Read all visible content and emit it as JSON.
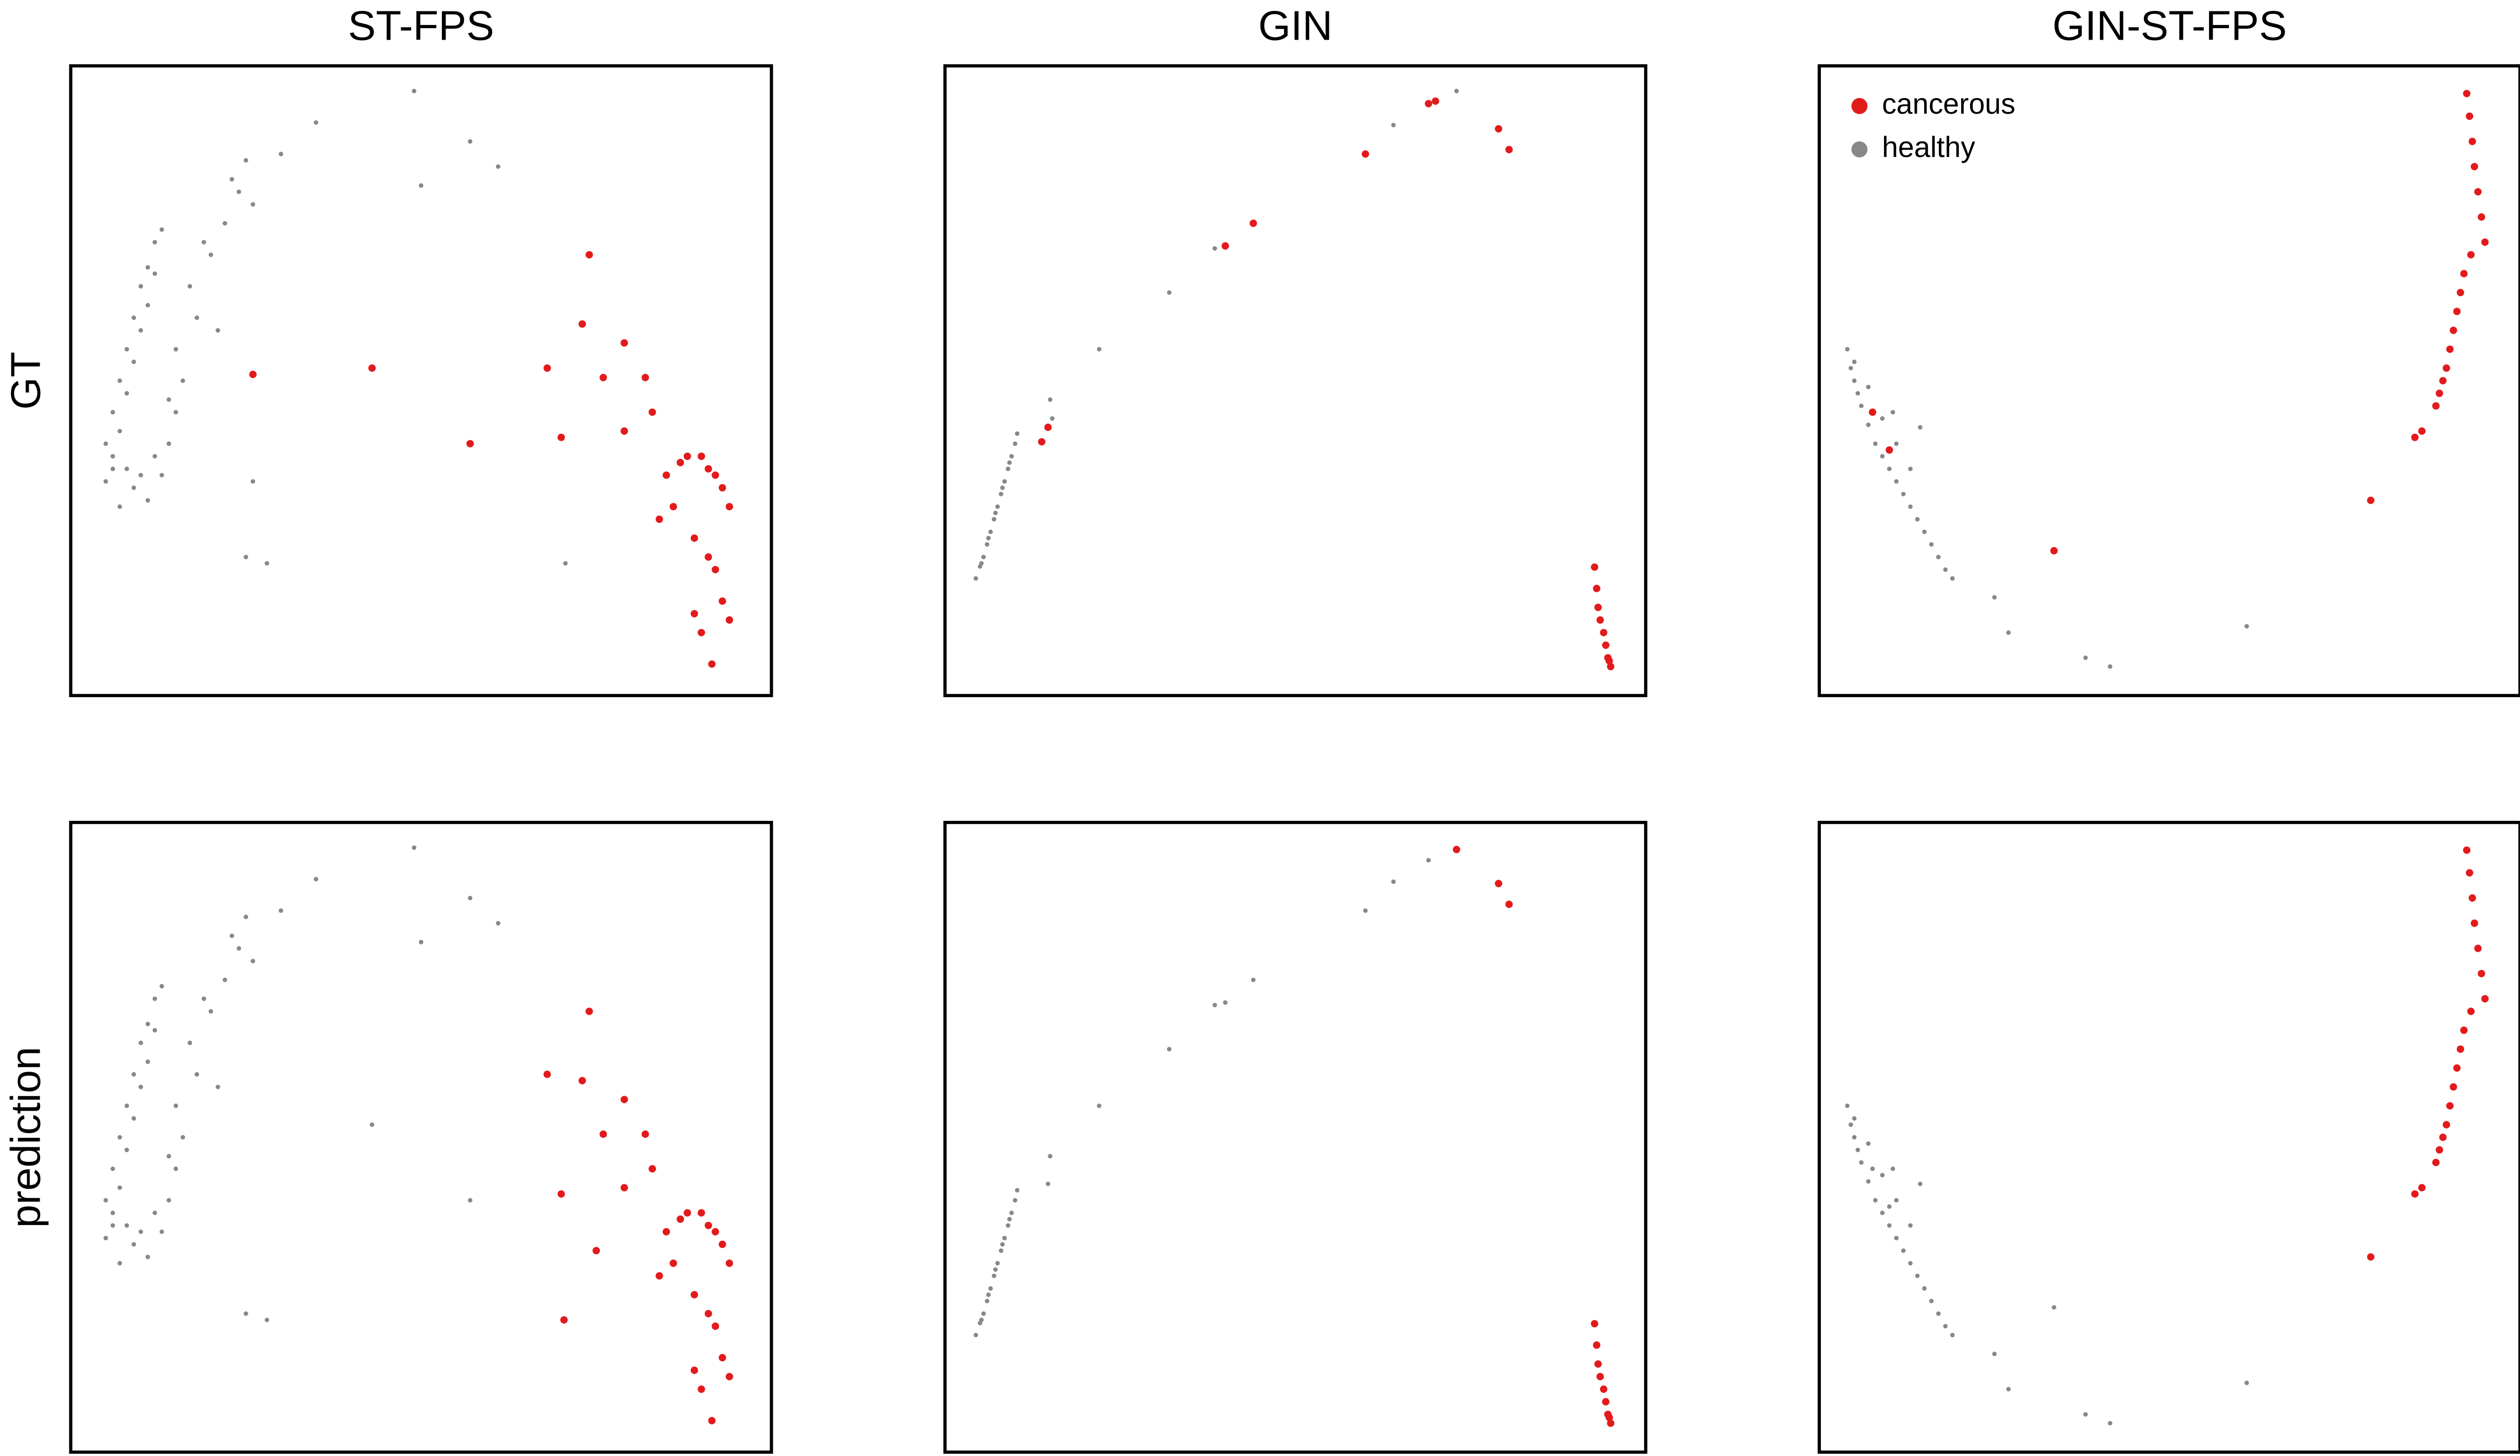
{
  "columns": [
    "ST-FPS",
    "GIN",
    "GIN-ST-FPS"
  ],
  "rows": [
    "GT",
    "prediction"
  ],
  "chart_data": [
    {
      "type": "scatter",
      "xlim": [
        0,
        100
      ],
      "ylim": [
        0,
        100
      ],
      "series": [
        {
          "name": "cancerous",
          "color": "#e31a1c",
          "x": [
            74,
            43,
            26,
            57,
            68,
            73,
            79,
            76,
            82,
            70,
            79,
            83,
            85,
            87,
            88,
            90,
            91,
            92,
            93,
            94,
            84,
            86,
            89,
            91,
            92,
            93,
            94,
            91.5,
            90,
            89
          ],
          "values": [
            70,
            52,
            51,
            40,
            52,
            59,
            56,
            50.5,
            50.5,
            41,
            42,
            45,
            35,
            37,
            38,
            38,
            36,
            35,
            33,
            30,
            28,
            30,
            25,
            22,
            20,
            15,
            12,
            5,
            10,
            13
          ]
        },
        {
          "name": "healthy",
          "color": "#888888",
          "x": [
            5,
            6,
            7,
            8,
            9,
            10,
            11,
            12,
            13,
            6,
            7,
            8,
            9,
            10,
            11,
            12,
            5,
            6,
            8,
            10,
            12,
            14,
            7,
            9,
            11,
            13,
            15,
            16,
            18,
            20,
            22,
            24,
            26,
            15,
            17,
            19,
            21,
            23,
            25,
            30,
            35,
            49,
            57,
            61,
            50,
            26,
            28,
            70.6,
            25,
            14
          ],
          "values": [
            40,
            45,
            50,
            55,
            60,
            65,
            68,
            72,
            74,
            36,
            42,
            48,
            53,
            58,
            62,
            67,
            34,
            38,
            36,
            35,
            38,
            40,
            30,
            33,
            31,
            35,
            45,
            50,
            60,
            70,
            75,
            80,
            78,
            55,
            65,
            72,
            58,
            82,
            85,
            86,
            91,
            96,
            88,
            84,
            81,
            34,
            21,
            21,
            22,
            47
          ]
        }
      ]
    },
    {
      "type": "scatter",
      "xlim": [
        0,
        100
      ],
      "ylim": [
        0,
        100
      ],
      "series": [
        {
          "name": "cancerous",
          "color": "#e31a1c",
          "x": [
            14.7,
            13.8,
            40,
            44,
            60,
            69,
            70,
            79,
            80.5,
            92.7,
            93,
            93.2,
            93.5,
            94,
            94.3,
            94.6,
            95,
            94.8
          ],
          "values": [
            42.6,
            40.3,
            71.4,
            75,
            86,
            94,
            94.4,
            90,
            86.7,
            20.4,
            17,
            14,
            12,
            10,
            8,
            6,
            4.6,
            5.5
          ]
        },
        {
          "name": "healthy",
          "color": "#888888",
          "x": [
            4.4,
            5,
            5.5,
            6,
            6.5,
            7,
            7.5,
            8,
            8.5,
            9,
            9.5,
            10,
            10.3,
            5.2,
            6.2,
            7.2,
            8.2,
            9.2,
            15,
            22,
            32,
            38.5,
            64,
            73,
            15.3
          ],
          "values": [
            18.6,
            20.5,
            22,
            24,
            26,
            28,
            30,
            32,
            34,
            36,
            38,
            40,
            41.6,
            21,
            25,
            29,
            33,
            37,
            47,
            55,
            64,
            71,
            90.6,
            96,
            44
          ]
        }
      ]
    },
    {
      "type": "scatter",
      "xlim": [
        0,
        100
      ],
      "ylim": [
        0,
        100
      ],
      "legend": "upper left",
      "series": [
        {
          "name": "cancerous",
          "color": "#e31a1c",
          "x": [
            92.4,
            92.8,
            93.2,
            93.5,
            94,
            94.5,
            95,
            93,
            92,
            91.5,
            91,
            90.5,
            90,
            89.5,
            89,
            88.5,
            88,
            86,
            85,
            78.7,
            33.5,
            7.6,
            10
          ],
          "values": [
            95.6,
            92,
            88,
            84,
            80,
            76,
            72,
            70,
            67,
            64,
            61,
            58,
            55,
            52,
            50,
            48,
            46,
            42,
            41,
            31,
            23,
            45,
            39
          ]
        },
        {
          "name": "healthy",
          "color": "#888888",
          "x": [
            4,
            4.5,
            5,
            5.5,
            6,
            7,
            8,
            9,
            10,
            11,
            12,
            13,
            14,
            15,
            16,
            17,
            18,
            19,
            5,
            7,
            9,
            11,
            13,
            14.4,
            25,
            27,
            38,
            41.5,
            61,
            10.5
          ],
          "values": [
            55,
            52,
            50,
            48,
            46,
            43,
            40,
            38,
            36,
            34,
            32,
            30,
            28,
            26,
            24,
            22,
            20,
            18.6,
            53,
            49,
            44,
            40,
            36,
            42.6,
            15.6,
            10,
            6,
            4.6,
            11,
            45
          ]
        }
      ]
    },
    {
      "type": "scatter",
      "xlim": [
        0,
        100
      ],
      "ylim": [
        0,
        100
      ],
      "series": [
        {
          "name": "cancerous",
          "color": "#e31a1c",
          "x": [
            74,
            68,
            73,
            79,
            76,
            82,
            70,
            79,
            83,
            85,
            87,
            88,
            90,
            91,
            92,
            93,
            94,
            84,
            86,
            89,
            91,
            92,
            93,
            94,
            91.5,
            90,
            89,
            75,
            70.4
          ],
          "values": [
            70,
            60,
            59,
            56,
            50.5,
            50.5,
            41,
            42,
            45,
            35,
            37,
            38,
            38,
            36,
            35,
            33,
            30,
            28,
            30,
            25,
            22,
            20,
            15,
            12,
            5,
            10,
            13,
            32,
            21
          ]
        },
        {
          "name": "healthy",
          "color": "#888888",
          "x": [
            5,
            6,
            7,
            8,
            9,
            10,
            11,
            12,
            13,
            6,
            7,
            8,
            9,
            10,
            11,
            12,
            5,
            6,
            8,
            10,
            12,
            14,
            7,
            9,
            11,
            13,
            15,
            16,
            18,
            20,
            22,
            24,
            26,
            15,
            17,
            19,
            21,
            23,
            25,
            30,
            35,
            49,
            57,
            61,
            50,
            43,
            57,
            28,
            25,
            14
          ],
          "values": [
            40,
            45,
            50,
            55,
            60,
            65,
            68,
            72,
            74,
            36,
            42,
            48,
            53,
            58,
            62,
            67,
            34,
            38,
            36,
            35,
            38,
            40,
            30,
            33,
            31,
            35,
            45,
            50,
            60,
            70,
            75,
            80,
            78,
            55,
            65,
            72,
            58,
            82,
            85,
            86,
            91,
            96,
            88,
            84,
            81,
            52,
            40,
            21,
            22,
            47
          ]
        }
      ]
    },
    {
      "type": "scatter",
      "xlim": [
        0,
        100
      ],
      "ylim": [
        0,
        100
      ],
      "series": [
        {
          "name": "cancerous",
          "color": "#e31a1c",
          "x": [
            73,
            79,
            80.5,
            92.7,
            93,
            93.2,
            93.5,
            94,
            94.3,
            94.6,
            95,
            94.8
          ],
          "values": [
            95.7,
            90.3,
            87,
            20.4,
            17,
            14,
            12,
            10,
            8,
            6,
            4.6,
            5.5
          ]
        },
        {
          "name": "healthy",
          "color": "#888888",
          "x": [
            4.4,
            5,
            5.5,
            6,
            6.5,
            7,
            7.5,
            8,
            8.5,
            9,
            9.5,
            10,
            10.3,
            5.2,
            6.2,
            7.2,
            8.2,
            9.2,
            15,
            22,
            32,
            38.5,
            40,
            44,
            60,
            64,
            69,
            14.7
          ],
          "values": [
            18.6,
            20.5,
            22,
            24,
            26,
            28,
            30,
            32,
            34,
            36,
            38,
            40,
            41.6,
            21,
            25,
            29,
            33,
            37,
            47,
            55,
            64,
            71,
            71.4,
            75,
            86,
            90.6,
            94,
            42.6
          ]
        }
      ]
    },
    {
      "type": "scatter",
      "xlim": [
        0,
        100
      ],
      "ylim": [
        0,
        100
      ],
      "series": [
        {
          "name": "cancerous",
          "color": "#e31a1c",
          "x": [
            92.4,
            92.8,
            93.2,
            93.5,
            94,
            94.5,
            95,
            93,
            92,
            91.5,
            91,
            90.5,
            90,
            89.5,
            89,
            88.5,
            88,
            86,
            85,
            78.7
          ],
          "values": [
            95.6,
            92,
            88,
            84,
            80,
            76,
            72,
            70,
            67,
            64,
            61,
            58,
            55,
            52,
            50,
            48,
            46,
            42,
            41,
            31
          ]
        },
        {
          "name": "healthy",
          "color": "#888888",
          "x": [
            4,
            4.5,
            5,
            5.5,
            6,
            7,
            8,
            9,
            10,
            11,
            12,
            13,
            14,
            15,
            16,
            17,
            18,
            19,
            5,
            7,
            9,
            11,
            13,
            14.4,
            25,
            27,
            38,
            41.5,
            61,
            10.5,
            33.5,
            7.6,
            10
          ],
          "values": [
            55,
            52,
            50,
            48,
            46,
            43,
            40,
            38,
            36,
            34,
            32,
            30,
            28,
            26,
            24,
            22,
            20,
            18.6,
            53,
            49,
            44,
            40,
            36,
            42.6,
            15.6,
            10,
            6,
            4.6,
            11,
            45,
            23,
            45,
            39
          ]
        }
      ]
    }
  ]
}
